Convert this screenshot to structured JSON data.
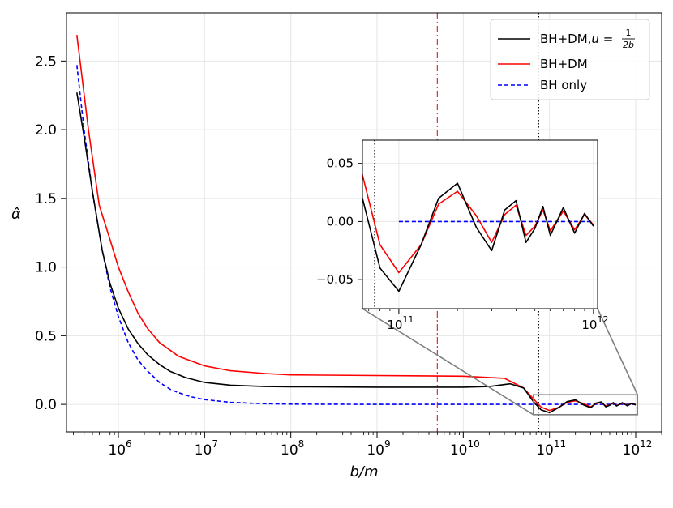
{
  "chart_data": {
    "type": "line",
    "xscale": "log",
    "xlabel": "b/m",
    "ylabel": "α̂",
    "xlim": [
      250000,
      2000000000000
    ],
    "ylim": [
      -0.2,
      2.85
    ],
    "xticks": [
      {
        "value": 1000000,
        "base": "10",
        "exp": "6"
      },
      {
        "value": 10000000,
        "base": "10",
        "exp": "7"
      },
      {
        "value": 100000000,
        "base": "10",
        "exp": "8"
      },
      {
        "value": 1000000000,
        "base": "10",
        "exp": "9"
      },
      {
        "value": 10000000000,
        "base": "10",
        "exp": "10"
      },
      {
        "value": 100000000000,
        "base": "10",
        "exp": "11"
      },
      {
        "value": 1000000000000,
        "base": "10",
        "exp": "12"
      }
    ],
    "yticks": [
      {
        "value": 0,
        "label": "0.0"
      },
      {
        "value": 0.5,
        "label": "0.5"
      },
      {
        "value": 1.0,
        "label": "1.0"
      },
      {
        "value": 1.5,
        "label": "1.5"
      },
      {
        "value": 2.0,
        "label": "2.0"
      },
      {
        "value": 2.5,
        "label": "2.5"
      }
    ],
    "vlines": [
      {
        "x": 5000000000,
        "color": "#e41a1c",
        "style": "dashdot"
      },
      {
        "x": 75000000000,
        "color": "#000000",
        "style": "dotted"
      }
    ],
    "series": [
      {
        "name": "BH+DM,u = 1/2b",
        "label_text": "BH+DM,",
        "label_math": "u",
        "label_frac_num": "1",
        "label_frac_den": "2b",
        "color": "#000000",
        "dash": "solid",
        "x": [
          330000,
          400000,
          500000,
          650000,
          800000,
          1000000,
          1300000,
          1700000,
          2200000,
          3000000,
          4000000,
          6000000,
          10000000,
          20000000,
          50000000,
          100000000,
          1000000000,
          10000000000,
          20000000000,
          35000000000,
          50000000000,
          65000000000,
          80000000000,
          100000000000,
          130000000000,
          160000000000,
          200000000000,
          250000000000,
          300000000000,
          350000000000,
          400000000000,
          450000000000,
          500000000000,
          550000000000,
          600000000000,
          700000000000,
          800000000000,
          900000000000,
          1000000000000
        ],
        "y": [
          2.27,
          1.95,
          1.55,
          1.12,
          0.88,
          0.7,
          0.55,
          0.44,
          0.36,
          0.29,
          0.24,
          0.195,
          0.16,
          0.14,
          0.13,
          0.128,
          0.125,
          0.125,
          0.13,
          0.15,
          0.12,
          0.02,
          -0.04,
          -0.06,
          -0.02,
          0.02,
          0.033,
          -0.005,
          -0.025,
          0.01,
          0.018,
          -0.018,
          -0.006,
          0.013,
          -0.012,
          0.012,
          -0.01,
          0.007,
          -0.004
        ]
      },
      {
        "name": "BH+DM",
        "label_text": "BH+DM",
        "color": "#ff0000",
        "dash": "solid",
        "x": [
          330000,
          450000,
          600000,
          800000,
          1000000,
          1300000,
          1700000,
          2200000,
          3000000,
          5000000,
          10000000,
          20000000,
          50000000,
          100000000,
          1000000000,
          10000000000,
          30000000000,
          50000000000,
          65000000000,
          80000000000,
          100000000000,
          130000000000,
          160000000000,
          200000000000,
          250000000000,
          300000000000,
          350000000000,
          400000000000,
          450000000000,
          500000000000,
          550000000000,
          600000000000,
          700000000000,
          800000000000,
          900000000000,
          1000000000000
        ],
        "y": [
          2.69,
          2.0,
          1.45,
          1.2,
          1.0,
          0.82,
          0.66,
          0.55,
          0.45,
          0.35,
          0.28,
          0.245,
          0.225,
          0.215,
          0.21,
          0.205,
          0.19,
          0.12,
          0.04,
          -0.02,
          -0.044,
          -0.02,
          0.015,
          0.026,
          0.005,
          -0.018,
          0.006,
          0.014,
          -0.012,
          -0.004,
          0.01,
          -0.008,
          0.009,
          -0.007,
          0.006,
          -0.003
        ]
      },
      {
        "name": "BH only",
        "label_text": "BH only",
        "color": "#0000ff",
        "dash": "dashed",
        "x": [
          330000,
          400000,
          500000,
          650000,
          800000,
          1000000,
          1300000,
          1700000,
          2200000,
          3000000,
          4000000,
          5000000,
          7000000,
          10000000,
          20000000,
          50000000,
          100000000,
          1000000000,
          10000000000,
          100000000000,
          1000000000000
        ],
        "y": [
          2.47,
          2.0,
          1.55,
          1.12,
          0.85,
          0.64,
          0.45,
          0.32,
          0.24,
          0.16,
          0.11,
          0.085,
          0.055,
          0.035,
          0.015,
          0.005,
          0.002,
          0.0,
          0.0,
          0.0,
          0.0
        ]
      }
    ],
    "zoom_box": {
      "x": [
        65000000000,
        1050000000000
      ],
      "y": [
        -0.075,
        0.07
      ]
    },
    "inset": {
      "xlim": [
        65000000000,
        1050000000000
      ],
      "ylim": [
        -0.075,
        0.07
      ],
      "xticks": [
        {
          "value": 100000000000,
          "base": "10",
          "exp": "11"
        },
        {
          "value": 1000000000000,
          "base": "10",
          "exp": "12"
        }
      ],
      "yticks": [
        {
          "value": 0.05,
          "label": "0.05"
        },
        {
          "value": 0.0,
          "label": "0.00"
        },
        {
          "value": -0.05,
          "label": "−0.05"
        }
      ],
      "vline": {
        "x": 75000000000,
        "color": "#000000",
        "style": "dotted"
      }
    }
  }
}
